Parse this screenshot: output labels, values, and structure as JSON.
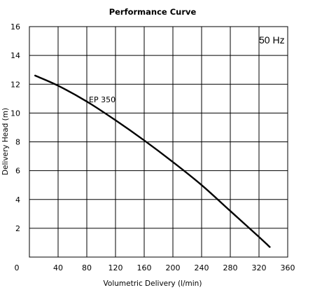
{
  "chart_data": {
    "type": "line",
    "title": "Performance Curve",
    "xlabel": "Volumetric Delivery (l/min)",
    "ylabel": "Delivery Head (m)",
    "xlim": [
      0,
      360
    ],
    "ylim": [
      0,
      16
    ],
    "x_ticks": [
      40,
      80,
      120,
      160,
      200,
      240,
      280,
      320,
      360
    ],
    "y_ticks": [
      2,
      4,
      6,
      8,
      10,
      12,
      14,
      16
    ],
    "origin_label": "0",
    "grid": true,
    "annotation": "50 Hz",
    "series": [
      {
        "name": "EP 350",
        "x": [
          8,
          40,
          80,
          120,
          160,
          200,
          240,
          280,
          320,
          335
        ],
        "y": [
          12.6,
          11.9,
          10.8,
          9.5,
          8.1,
          6.6,
          5.0,
          3.2,
          1.4,
          0.7
        ]
      }
    ]
  }
}
